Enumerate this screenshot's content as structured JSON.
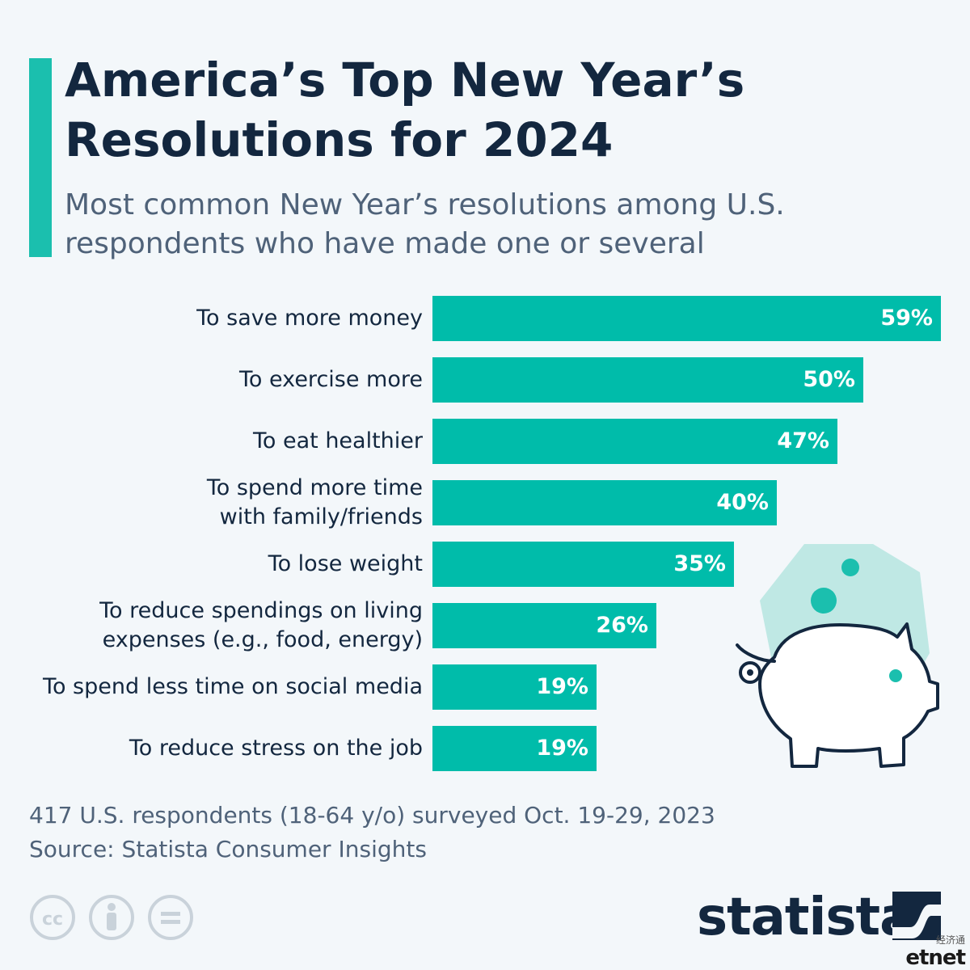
{
  "header": {
    "title": "America’s Top New Year’s Resolutions for 2024",
    "subtitle": "Most common New Year’s resolutions among U.S. respondents who have made one or several"
  },
  "chart_data": {
    "type": "bar",
    "orientation": "horizontal",
    "title": "America’s Top New Year’s Resolutions for 2024",
    "subtitle": "Most common New Year’s resolutions among U.S. respondents who have made one or several",
    "categories": [
      [
        "To save more money"
      ],
      [
        "To exercise more"
      ],
      [
        "To eat healthier"
      ],
      [
        "To spend more time",
        "with family/friends"
      ],
      [
        "To lose weight"
      ],
      [
        "To reduce spendings on living",
        "expenses (e.g., food, energy)"
      ],
      [
        "To spend less time on social media"
      ],
      [
        "To reduce stress on the job"
      ]
    ],
    "values": [
      59,
      50,
      47,
      40,
      35,
      26,
      19,
      19
    ],
    "value_labels": [
      "59%",
      "50%",
      "47%",
      "40%",
      "35%",
      "26%",
      "19%",
      "19%"
    ],
    "unit": "%",
    "xlim": [
      0,
      59
    ],
    "grid": false,
    "bar_color": "#00bcaa"
  },
  "footer": {
    "note": "417 U.S. respondents (18-64 y/o) surveyed Oct. 19-29, 2023",
    "source": "Source: Statista Consumer Insights"
  },
  "branding": {
    "logo_text": "statista",
    "watermark_cn": "经济通",
    "watermark_en": "etnet"
  },
  "icons": [
    "cc-icon",
    "attribution-icon",
    "no-derivatives-icon",
    "piggy-bank-icon",
    "statista-logo-icon"
  ],
  "colors": {
    "accent": "#1bbfae",
    "bar": "#00bcaa",
    "title": "#13273f",
    "subtitle": "#4f6279",
    "background": "#f3f7fa"
  }
}
